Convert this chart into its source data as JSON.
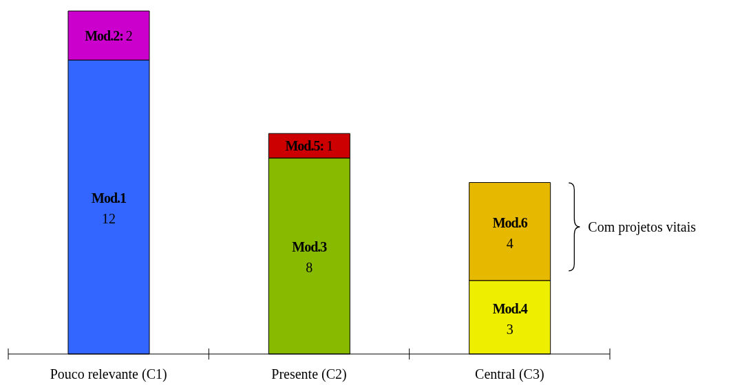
{
  "chart_data": {
    "type": "bar",
    "stacked": true,
    "data_labels": true,
    "categories": [
      "Pouco relevante (C1)",
      "Presente (C2)",
      "Central (C3)"
    ],
    "series": [
      {
        "name": "Mod.1",
        "color": "#3366ff",
        "values": [
          12,
          null,
          null
        ]
      },
      {
        "name": "Mod.3",
        "color": "#88bb00",
        "values": [
          null,
          8,
          null
        ]
      },
      {
        "name": "Mod.4",
        "color": "#eeee00",
        "values": [
          null,
          null,
          3
        ]
      },
      {
        "name": "Mod.2:",
        "color": "#cc00cc",
        "values": [
          2,
          null,
          null
        ]
      },
      {
        "name": "Mod.5:",
        "color": "#cc0000",
        "values": [
          null,
          1,
          null
        ]
      },
      {
        "name": "Mod.6",
        "color": "#e6b800",
        "values": [
          null,
          null,
          4
        ]
      }
    ],
    "annotations": [
      "Com projetos vitais"
    ]
  }
}
